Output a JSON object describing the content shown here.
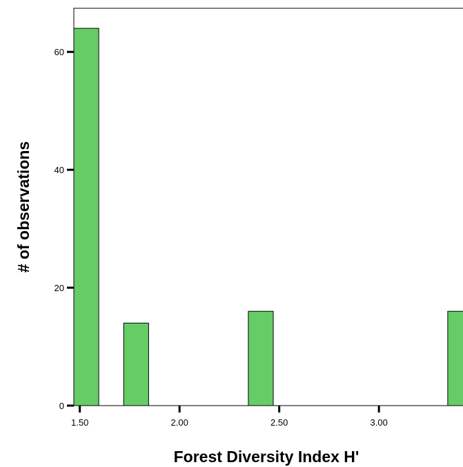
{
  "chart_data": {
    "type": "bar",
    "title": "",
    "xlabel": "Forest Diversity Index H'",
    "ylabel": "# of observations",
    "x_ticks": [
      "1.50",
      "2.00",
      "2.50",
      "3.00"
    ],
    "x_tick_values": [
      1.5,
      2.0,
      2.5,
      3.0
    ],
    "y_ticks": [
      "0",
      "20",
      "40",
      "60"
    ],
    "y_tick_values": [
      0,
      20,
      40,
      60
    ],
    "xlim": [
      1.47,
      3.5
    ],
    "ylim": [
      0,
      67.4
    ],
    "bars": [
      {
        "x0": 1.47,
        "x1": 1.595,
        "value": 64
      },
      {
        "x0": 1.72,
        "x1": 1.845,
        "value": 14
      },
      {
        "x0": 2.345,
        "x1": 2.47,
        "value": 16
      },
      {
        "x0": 3.345,
        "x1": 3.47,
        "value": 16
      }
    ],
    "bar_color": "#66cc66",
    "grid": false,
    "legend": "none"
  }
}
